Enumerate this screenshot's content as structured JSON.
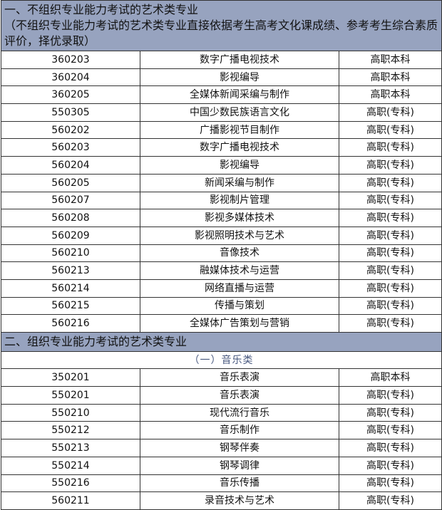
{
  "section1": {
    "title": "一、不组织专业能力考试的艺术类专业",
    "note": "（不组织专业能力考试的艺术类专业直接依据考生高考文化课成绩、参考考生综合素质评价，择优录取）",
    "rows": [
      [
        "360203",
        "数字广播电视技术",
        "高职本科"
      ],
      [
        "360204",
        "影视编导",
        "高职本科"
      ],
      [
        "360205",
        "全媒体新闻采编与制作",
        "高职本科"
      ],
      [
        "550305",
        "中国少数民族语言文化",
        "高职(专科)"
      ],
      [
        "560202",
        "广播影视节目制作",
        "高职(专科)"
      ],
      [
        "560203",
        "数字广播电视技术",
        "高职(专科)"
      ],
      [
        "560204",
        "影视编导",
        "高职(专科)"
      ],
      [
        "560205",
        "新闻采编与制作",
        "高职(专科)"
      ],
      [
        "560207",
        "影视制片管理",
        "高职(专科)"
      ],
      [
        "560208",
        "影视多媒体技术",
        "高职(专科)"
      ],
      [
        "560209",
        "影视照明技术与艺术",
        "高职(专科)"
      ],
      [
        "560210",
        "音像技术",
        "高职(专科)"
      ],
      [
        "560213",
        "融媒体技术与运营",
        "高职(专科)"
      ],
      [
        "560214",
        "网络直播与运营",
        "高职(专科)"
      ],
      [
        "560215",
        "传播与策划",
        "高职(专科)"
      ],
      [
        "560216",
        "全媒体广告策划与营销",
        "高职(专科)"
      ]
    ]
  },
  "section2": {
    "title": "二、组织专业能力考试的艺术类专业",
    "subtitle": "（一）音乐类",
    "rows": [
      [
        "350201",
        "音乐表演",
        "高职本科"
      ],
      [
        "550201",
        "音乐表演",
        "高职(专科)"
      ],
      [
        "550210",
        "现代流行音乐",
        "高职(专科)"
      ],
      [
        "550212",
        "音乐制作",
        "高职(专科)"
      ],
      [
        "550213",
        "钢琴伴奏",
        "高职(专科)"
      ],
      [
        "550214",
        "钢琴调律",
        "高职(专科)"
      ],
      [
        "550216",
        "音乐传播",
        "高职(专科)"
      ],
      [
        "560211",
        "录音技术与艺术",
        "高职(专科)"
      ]
    ]
  },
  "colors": {
    "header_bg": "#97a3bf",
    "subtitle_text": "#4a5a80"
  }
}
